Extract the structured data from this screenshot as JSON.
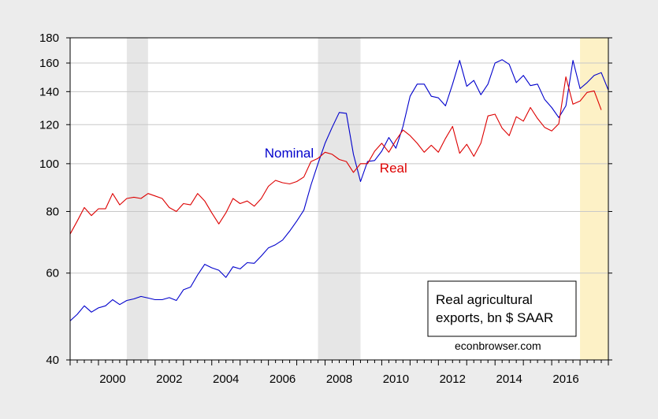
{
  "chart_data": {
    "type": "line",
    "title": "",
    "xlabel": "",
    "ylabel": "",
    "y_scale": "log",
    "ylim": [
      40,
      180
    ],
    "xlim": [
      1999.0,
      2018.0
    ],
    "y_ticks": [
      40,
      60,
      80,
      100,
      120,
      140,
      160,
      180
    ],
    "x_ticks": [
      2000,
      2002,
      2004,
      2006,
      2008,
      2010,
      2012,
      2014,
      2016
    ],
    "grid": "horizontal",
    "recession_shading": [
      {
        "start": 2001.0,
        "end": 2001.75
      },
      {
        "start": 2007.75,
        "end": 2009.25
      }
    ],
    "highlight_period": {
      "start": 2017.0,
      "end": 2018.0,
      "color": "#fdf1c6"
    },
    "legend_box": {
      "lines": [
        "Real agricultural",
        "exports, bn $ SAAR"
      ],
      "placement": "bottom-right"
    },
    "credit": "econbrowser.com",
    "series": [
      {
        "name": "Nominal",
        "color": "#0000cc",
        "label_at": [
          2007.6,
          103
        ],
        "x_start": 1999.0,
        "step": 0.25,
        "values": [
          48.0,
          49.5,
          51.5,
          50.0,
          51.0,
          51.5,
          53.0,
          51.8,
          52.8,
          53.2,
          53.8,
          53.4,
          53.0,
          53.0,
          53.5,
          52.8,
          55.5,
          56.2,
          59.5,
          62.5,
          61.5,
          60.8,
          58.8,
          61.8,
          61.2,
          63.0,
          62.8,
          65.0,
          67.5,
          68.5,
          70.0,
          73.0,
          76.5,
          80.5,
          90.5,
          100.0,
          110.0,
          118.5,
          127.0,
          126.5,
          104.5,
          92.0,
          101.0,
          101.5,
          106.0,
          113.0,
          107.5,
          119.0,
          137.0,
          145.0,
          145.0,
          137.0,
          136.0,
          131.0,
          145.0,
          162.0,
          143.5,
          147.5,
          138.0,
          145.0,
          160.0,
          162.5,
          159.0,
          146.0,
          151.0,
          144.0,
          145.0,
          135.0,
          130.0,
          124.0,
          131.0,
          162.0,
          142.0,
          146.0,
          151.0,
          153.0,
          141.0
        ]
      },
      {
        "name": "Real",
        "color": "#dd0000",
        "label_at": [
          2010.9,
          96
        ],
        "x_start": 1999.0,
        "step": 0.25,
        "values": [
          72.0,
          76.5,
          81.5,
          78.5,
          81.0,
          81.0,
          87.0,
          82.5,
          85.0,
          85.5,
          85.0,
          87.0,
          86.0,
          85.0,
          81.5,
          80.0,
          83.0,
          82.5,
          87.0,
          84.0,
          79.5,
          75.5,
          79.5,
          85.0,
          83.0,
          84.0,
          82.0,
          85.0,
          90.0,
          92.5,
          91.5,
          91.0,
          92.0,
          94.0,
          101.0,
          102.5,
          105.5,
          104.5,
          102.0,
          101.0,
          96.0,
          100.0,
          100.0,
          106.0,
          110.0,
          105.5,
          111.5,
          117.0,
          114.0,
          110.0,
          105.5,
          109.0,
          105.5,
          112.5,
          119.0,
          105.0,
          109.5,
          103.5,
          110.0,
          125.0,
          126.0,
          118.0,
          114.0,
          124.5,
          122.0,
          130.0,
          123.5,
          118.5,
          116.5,
          120.5,
          150.0,
          132.0,
          134.0,
          139.5,
          140.5,
          128.5
        ]
      }
    ]
  }
}
